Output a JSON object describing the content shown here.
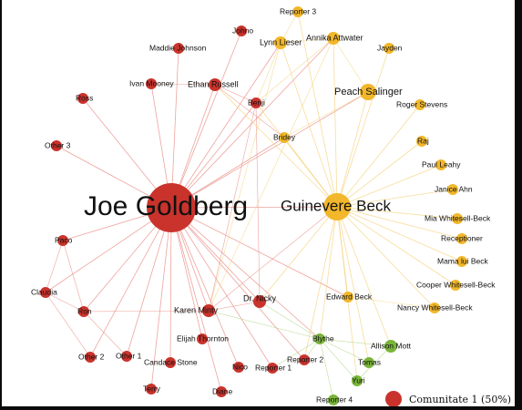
{
  "colors": {
    "red": "#c9332c",
    "yellow": "#f2b72a",
    "green": "#79b539",
    "edge_red": "#e7857d",
    "edge_yellow": "#f5d07a",
    "edge_green": "#a9d27a"
  },
  "legend": {
    "label": "Comunitate 1 (50%)",
    "swatch_color": "#c9332c"
  },
  "nodes": [
    {
      "id": "joe",
      "label": "Joe Goldberg",
      "group": "red"
    },
    {
      "id": "guin",
      "label": "Guinevere Beck",
      "group": "yellow"
    },
    {
      "id": "maddie",
      "label": "Maddie Johnson",
      "group": "red"
    },
    {
      "id": "johno",
      "label": "Johno",
      "group": "red"
    },
    {
      "id": "ivan",
      "label": "Ivan Mooney",
      "group": "red"
    },
    {
      "id": "ethan",
      "label": "Ethan Russell",
      "group": "red"
    },
    {
      "id": "benji",
      "label": "Benji",
      "group": "red"
    },
    {
      "id": "ross",
      "label": "Ross",
      "group": "red"
    },
    {
      "id": "other3",
      "label": "Other 3",
      "group": "red"
    },
    {
      "id": "paco",
      "label": "Paco",
      "group": "red"
    },
    {
      "id": "claudia",
      "label": "Claudia",
      "group": "red"
    },
    {
      "id": "ron",
      "label": "Ron",
      "group": "red"
    },
    {
      "id": "other2",
      "label": "Other 2",
      "group": "red"
    },
    {
      "id": "other1",
      "label": "Other 1",
      "group": "red"
    },
    {
      "id": "candace",
      "label": "Candace Stone",
      "group": "red"
    },
    {
      "id": "terry",
      "label": "Terry",
      "group": "red"
    },
    {
      "id": "karen",
      "label": "Karen Minty",
      "group": "red"
    },
    {
      "id": "elijah",
      "label": "Elijah Thornton",
      "group": "red"
    },
    {
      "id": "nico",
      "label": "Nico",
      "group": "red"
    },
    {
      "id": "diane",
      "label": "Diane",
      "group": "red"
    },
    {
      "id": "nicky",
      "label": "Dr. Nicky",
      "group": "red"
    },
    {
      "id": "rep1",
      "label": "Reporter 1",
      "group": "red"
    },
    {
      "id": "rep2",
      "label": "Reporter 2",
      "group": "red"
    },
    {
      "id": "rep3",
      "label": "Reporter 3",
      "group": "yellow"
    },
    {
      "id": "lynn",
      "label": "Lynn Lieser",
      "group": "yellow"
    },
    {
      "id": "annika",
      "label": "Annika Attwater",
      "group": "yellow"
    },
    {
      "id": "jayden",
      "label": "Jayden",
      "group": "yellow"
    },
    {
      "id": "peach",
      "label": "Peach Salinger",
      "group": "yellow"
    },
    {
      "id": "roger",
      "label": "Roger Stevens",
      "group": "yellow"
    },
    {
      "id": "bridey",
      "label": "Bridey",
      "group": "yellow"
    },
    {
      "id": "raj",
      "label": "Raj",
      "group": "yellow"
    },
    {
      "id": "paul",
      "label": "Paul Leahy",
      "group": "yellow"
    },
    {
      "id": "janice",
      "label": "Janice Ahn",
      "group": "yellow"
    },
    {
      "id": "mia",
      "label": "Mia Whitesell-Beck",
      "group": "yellow"
    },
    {
      "id": "recep",
      "label": "Receptioner",
      "group": "yellow"
    },
    {
      "id": "mama",
      "label": "Mama lui Beck",
      "group": "yellow"
    },
    {
      "id": "cooper",
      "label": "Cooper Whitesell-Beck",
      "group": "yellow"
    },
    {
      "id": "nancy",
      "label": "Nancy Whitesell-Beck",
      "group": "yellow"
    },
    {
      "id": "edward",
      "label": "Edward Beck",
      "group": "yellow"
    },
    {
      "id": "blythe",
      "label": "Blythe",
      "group": "green"
    },
    {
      "id": "allison",
      "label": "Allison Mott",
      "group": "green"
    },
    {
      "id": "tomas",
      "label": "Tomas",
      "group": "green"
    },
    {
      "id": "yuri",
      "label": "Yuri",
      "group": "green"
    },
    {
      "id": "rep4",
      "label": "Reporter 4",
      "group": "green"
    }
  ],
  "edges": [
    [
      "joe",
      "guin"
    ],
    [
      "joe",
      "maddie"
    ],
    [
      "joe",
      "johno"
    ],
    [
      "joe",
      "ivan"
    ],
    [
      "joe",
      "ethan"
    ],
    [
      "joe",
      "benji"
    ],
    [
      "joe",
      "ross"
    ],
    [
      "joe",
      "other3"
    ],
    [
      "joe",
      "paco"
    ],
    [
      "joe",
      "claudia"
    ],
    [
      "joe",
      "ron"
    ],
    [
      "joe",
      "other2"
    ],
    [
      "joe",
      "other1"
    ],
    [
      "joe",
      "candace"
    ],
    [
      "joe",
      "terry"
    ],
    [
      "joe",
      "karen"
    ],
    [
      "joe",
      "elijah"
    ],
    [
      "joe",
      "nico"
    ],
    [
      "joe",
      "diane"
    ],
    [
      "joe",
      "nicky"
    ],
    [
      "joe",
      "rep1"
    ],
    [
      "joe",
      "rep2"
    ],
    [
      "joe",
      "lynn"
    ],
    [
      "joe",
      "annika"
    ],
    [
      "joe",
      "peach"
    ],
    [
      "joe",
      "bridey"
    ],
    [
      "joe",
      "blythe"
    ],
    [
      "joe",
      "edward"
    ],
    [
      "paco",
      "claudia"
    ],
    [
      "paco",
      "ron"
    ],
    [
      "claudia",
      "ron"
    ],
    [
      "claudia",
      "other2"
    ],
    [
      "ron",
      "other1"
    ],
    [
      "ron",
      "karen"
    ],
    [
      "benji",
      "karen"
    ],
    [
      "benji",
      "nicky"
    ],
    [
      "ethan",
      "benji"
    ],
    [
      "ethan",
      "bridey"
    ],
    [
      "ivan",
      "ethan"
    ],
    [
      "karen",
      "guin"
    ],
    [
      "karen",
      "nicky"
    ],
    [
      "guin",
      "lynn"
    ],
    [
      "guin",
      "annika"
    ],
    [
      "guin",
      "jayden"
    ],
    [
      "guin",
      "peach"
    ],
    [
      "guin",
      "roger"
    ],
    [
      "guin",
      "bridey"
    ],
    [
      "guin",
      "raj"
    ],
    [
      "guin",
      "paul"
    ],
    [
      "guin",
      "janice"
    ],
    [
      "guin",
      "mia"
    ],
    [
      "guin",
      "recep"
    ],
    [
      "guin",
      "mama"
    ],
    [
      "guin",
      "cooper"
    ],
    [
      "guin",
      "nancy"
    ],
    [
      "guin",
      "edward"
    ],
    [
      "guin",
      "blythe"
    ],
    [
      "guin",
      "rep3"
    ],
    [
      "guin",
      "benji"
    ],
    [
      "guin",
      "ethan"
    ],
    [
      "guin",
      "nicky"
    ],
    [
      "guin",
      "allison"
    ],
    [
      "guin",
      "tomas"
    ],
    [
      "guin",
      "rep2"
    ],
    [
      "guin",
      "yuri"
    ],
    [
      "lynn",
      "annika"
    ],
    [
      "annika",
      "peach"
    ],
    [
      "lynn",
      "benji"
    ],
    [
      "annika",
      "benji"
    ],
    [
      "peach",
      "bridey"
    ],
    [
      "lynn",
      "karen"
    ],
    [
      "annika",
      "karen"
    ],
    [
      "rep3",
      "lynn"
    ],
    [
      "blythe",
      "allison"
    ],
    [
      "blythe",
      "tomas"
    ],
    [
      "blythe",
      "yuri"
    ],
    [
      "blythe",
      "rep4"
    ],
    [
      "blythe",
      "rep2"
    ],
    [
      "blythe",
      "rep1"
    ],
    [
      "blythe",
      "nicky"
    ],
    [
      "blythe",
      "karen"
    ],
    [
      "edward",
      "nancy"
    ],
    [
      "allison",
      "yuri"
    ]
  ]
}
